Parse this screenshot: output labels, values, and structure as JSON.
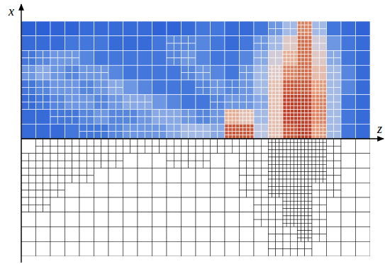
{
  "chart_data": {
    "type": "heatmap",
    "xlabel": "z",
    "ylabel": "x",
    "xlim": [
      0,
      24
    ],
    "ylim": [
      -8,
      8
    ],
    "tick_labels": false,
    "clim": [
      0,
      1
    ],
    "field": [
      [
        0.1,
        0.1,
        0.12,
        0.12,
        0.15,
        0.15,
        0.15,
        0.15,
        0.15,
        0.12,
        0.12,
        0.15,
        0.2,
        0.2,
        0.15,
        0.15,
        0.2,
        0.3,
        0.4,
        0.75,
        0.4,
        0.2,
        0.15,
        0.12
      ],
      [
        0.15,
        0.15,
        0.15,
        0.2,
        0.2,
        0.2,
        0.15,
        0.15,
        0.15,
        0.2,
        0.25,
        0.25,
        0.25,
        0.2,
        0.15,
        0.2,
        0.3,
        0.4,
        0.55,
        0.8,
        0.5,
        0.3,
        0.2,
        0.15
      ],
      [
        0.2,
        0.25,
        0.3,
        0.3,
        0.25,
        0.2,
        0.2,
        0.2,
        0.2,
        0.2,
        0.25,
        0.3,
        0.25,
        0.2,
        0.2,
        0.25,
        0.35,
        0.5,
        0.65,
        0.8,
        0.55,
        0.35,
        0.2,
        0.15
      ],
      [
        0.3,
        0.35,
        0.3,
        0.25,
        0.3,
        0.3,
        0.25,
        0.2,
        0.2,
        0.2,
        0.2,
        0.25,
        0.3,
        0.25,
        0.2,
        0.3,
        0.4,
        0.55,
        0.75,
        0.8,
        0.6,
        0.4,
        0.25,
        0.15
      ],
      [
        0.2,
        0.25,
        0.3,
        0.3,
        0.25,
        0.3,
        0.35,
        0.3,
        0.25,
        0.2,
        0.2,
        0.2,
        0.25,
        0.3,
        0.25,
        0.3,
        0.4,
        0.6,
        0.85,
        0.85,
        0.7,
        0.4,
        0.25,
        0.15
      ],
      [
        0.15,
        0.2,
        0.25,
        0.3,
        0.3,
        0.25,
        0.3,
        0.35,
        0.35,
        0.3,
        0.25,
        0.2,
        0.2,
        0.25,
        0.3,
        0.3,
        0.35,
        0.6,
        0.9,
        0.9,
        0.75,
        0.4,
        0.2,
        0.15
      ],
      [
        0.15,
        0.15,
        0.2,
        0.2,
        0.25,
        0.3,
        0.25,
        0.25,
        0.3,
        0.35,
        0.35,
        0.3,
        0.25,
        0.3,
        0.65,
        0.6,
        0.4,
        0.6,
        0.9,
        0.9,
        0.75,
        0.4,
        0.2,
        0.15
      ],
      [
        0.15,
        0.15,
        0.15,
        0.2,
        0.2,
        0.2,
        0.25,
        0.3,
        0.3,
        0.3,
        0.35,
        0.4,
        0.4,
        0.35,
        0.85,
        0.85,
        0.45,
        0.6,
        0.85,
        0.9,
        0.7,
        0.4,
        0.2,
        0.15
      ]
    ],
    "field_refinement": [
      [
        0,
        0,
        0,
        0,
        0,
        0,
        0,
        0,
        0,
        0,
        0,
        0,
        0,
        0,
        0,
        0,
        0,
        1,
        1,
        2,
        1,
        0,
        0,
        0
      ],
      [
        0,
        0,
        0,
        0,
        0,
        0,
        0,
        0,
        0,
        0,
        1,
        1,
        0,
        0,
        0,
        0,
        1,
        1,
        1,
        2,
        1,
        0,
        0,
        0
      ],
      [
        1,
        1,
        1,
        1,
        0,
        0,
        0,
        0,
        0,
        0,
        1,
        1,
        0,
        0,
        0,
        0,
        1,
        1,
        2,
        2,
        1,
        1,
        0,
        0
      ],
      [
        1,
        1,
        1,
        1,
        1,
        1,
        0,
        0,
        0,
        0,
        0,
        1,
        1,
        0,
        0,
        1,
        1,
        2,
        2,
        2,
        1,
        1,
        0,
        0
      ],
      [
        1,
        1,
        1,
        1,
        1,
        1,
        1,
        0,
        0,
        0,
        0,
        0,
        1,
        1,
        1,
        1,
        1,
        2,
        2,
        2,
        2,
        1,
        0,
        0
      ],
      [
        1,
        1,
        1,
        1,
        1,
        1,
        1,
        1,
        1,
        0,
        0,
        0,
        0,
        1,
        1,
        1,
        1,
        2,
        2,
        2,
        2,
        1,
        0,
        0
      ],
      [
        0,
        0,
        1,
        1,
        1,
        1,
        1,
        1,
        1,
        1,
        1,
        1,
        1,
        1,
        2,
        2,
        1,
        2,
        2,
        2,
        2,
        1,
        0,
        0
      ],
      [
        0,
        0,
        0,
        0,
        1,
        1,
        1,
        1,
        1,
        1,
        1,
        1,
        1,
        1,
        2,
        2,
        1,
        2,
        2,
        2,
        2,
        1,
        0,
        0
      ]
    ],
    "mesh_refinement": [
      [
        0,
        1,
        1,
        1,
        1,
        1,
        1,
        1,
        1,
        1,
        1,
        1,
        1,
        1,
        1,
        1,
        1,
        2,
        2,
        2,
        2,
        1,
        0,
        0
      ],
      [
        1,
        1,
        1,
        1,
        1,
        1,
        1,
        0,
        0,
        0,
        1,
        1,
        1,
        0,
        0,
        1,
        1,
        2,
        2,
        2,
        2,
        1,
        0,
        0
      ],
      [
        1,
        1,
        1,
        1,
        1,
        0,
        0,
        0,
        0,
        0,
        0,
        0,
        0,
        0,
        0,
        1,
        1,
        2,
        2,
        2,
        2,
        1,
        0,
        0
      ],
      [
        1,
        1,
        1,
        0,
        0,
        0,
        0,
        0,
        0,
        0,
        0,
        0,
        0,
        0,
        0,
        1,
        1,
        2,
        2,
        2,
        1,
        1,
        0,
        0
      ],
      [
        1,
        1,
        0,
        0,
        0,
        0,
        0,
        0,
        0,
        0,
        0,
        0,
        0,
        0,
        0,
        0,
        1,
        1,
        2,
        2,
        1,
        0,
        0,
        0
      ],
      [
        0,
        0,
        0,
        0,
        0,
        0,
        0,
        0,
        0,
        0,
        0,
        0,
        0,
        0,
        0,
        0,
        1,
        1,
        2,
        2,
        1,
        0,
        0,
        0
      ],
      [
        0,
        0,
        0,
        0,
        0,
        0,
        0,
        0,
        0,
        0,
        0,
        0,
        0,
        0,
        0,
        0,
        0,
        1,
        1,
        2,
        1,
        0,
        0,
        0
      ],
      [
        0,
        0,
        0,
        0,
        0,
        0,
        0,
        0,
        0,
        0,
        0,
        0,
        0,
        0,
        0,
        0,
        0,
        1,
        1,
        1,
        0,
        0,
        0,
        0
      ]
    ]
  }
}
